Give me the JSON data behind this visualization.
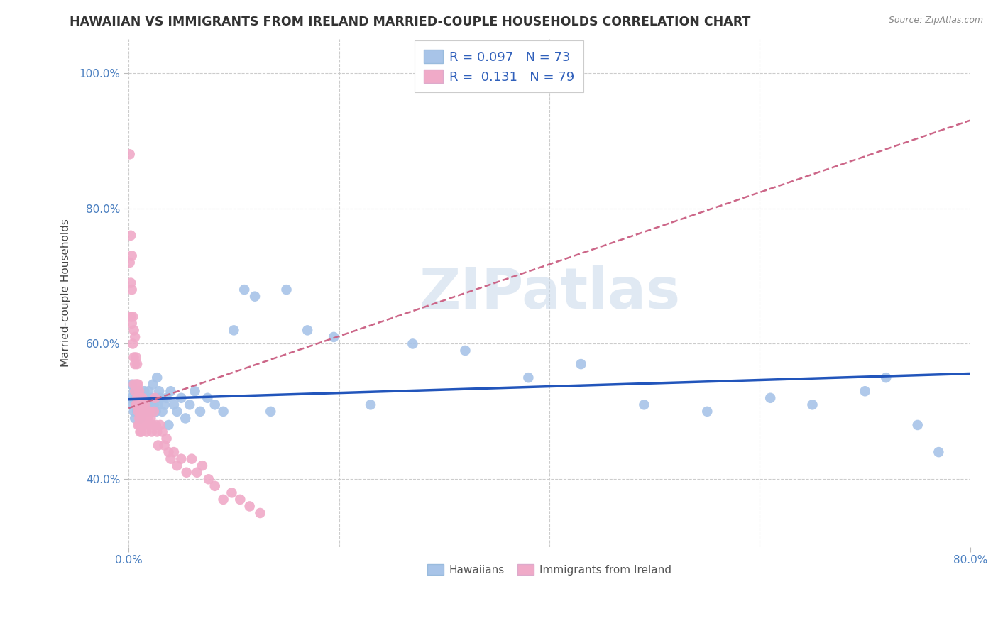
{
  "title": "HAWAIIAN VS IMMIGRANTS FROM IRELAND MARRIED-COUPLE HOUSEHOLDS CORRELATION CHART",
  "source": "Source: ZipAtlas.com",
  "ylabel": "Married-couple Households",
  "xlim": [
    0.0,
    0.8
  ],
  "ylim": [
    0.3,
    1.05
  ],
  "yticks": [
    0.4,
    0.6,
    0.8,
    1.0
  ],
  "ytick_labels": [
    "40.0%",
    "60.0%",
    "80.0%",
    "100.0%"
  ],
  "xtick_vals": [
    0.0,
    0.8
  ],
  "xtick_labels": [
    "0.0%",
    "80.0%"
  ],
  "hawaiian_R": 0.097,
  "hawaiian_N": 73,
  "ireland_R": 0.131,
  "ireland_N": 79,
  "hawaiian_color": "#a8c4e8",
  "ireland_color": "#f0aac8",
  "hawaiian_line_color": "#2255bb",
  "ireland_line_color": "#cc6688",
  "background_color": "#ffffff",
  "grid_color": "#cccccc",
  "watermark": "ZIPatlas",
  "watermark_color": "#c8d8ea",
  "hawaiian_x": [
    0.002,
    0.003,
    0.004,
    0.005,
    0.005,
    0.006,
    0.006,
    0.007,
    0.007,
    0.008,
    0.008,
    0.009,
    0.009,
    0.01,
    0.01,
    0.011,
    0.011,
    0.012,
    0.012,
    0.013,
    0.014,
    0.015,
    0.015,
    0.016,
    0.017,
    0.018,
    0.019,
    0.02,
    0.021,
    0.022,
    0.023,
    0.024,
    0.025,
    0.026,
    0.027,
    0.028,
    0.029,
    0.03,
    0.032,
    0.034,
    0.036,
    0.038,
    0.04,
    0.043,
    0.046,
    0.05,
    0.054,
    0.058,
    0.063,
    0.068,
    0.075,
    0.082,
    0.09,
    0.1,
    0.11,
    0.12,
    0.135,
    0.15,
    0.17,
    0.195,
    0.23,
    0.27,
    0.32,
    0.38,
    0.43,
    0.49,
    0.55,
    0.61,
    0.65,
    0.7,
    0.72,
    0.75,
    0.77
  ],
  "hawaiian_y": [
    0.52,
    0.54,
    0.51,
    0.53,
    0.5,
    0.52,
    0.49,
    0.51,
    0.53,
    0.5,
    0.52,
    0.51,
    0.53,
    0.5,
    0.52,
    0.51,
    0.49,
    0.52,
    0.5,
    0.51,
    0.52,
    0.5,
    0.53,
    0.51,
    0.52,
    0.5,
    0.53,
    0.51,
    0.52,
    0.5,
    0.54,
    0.51,
    0.52,
    0.5,
    0.55,
    0.51,
    0.53,
    0.52,
    0.5,
    0.51,
    0.52,
    0.48,
    0.53,
    0.51,
    0.5,
    0.52,
    0.49,
    0.51,
    0.53,
    0.5,
    0.52,
    0.51,
    0.5,
    0.62,
    0.68,
    0.67,
    0.5,
    0.68,
    0.62,
    0.61,
    0.51,
    0.6,
    0.59,
    0.55,
    0.57,
    0.51,
    0.5,
    0.52,
    0.51,
    0.53,
    0.55,
    0.48,
    0.44
  ],
  "ireland_x": [
    0.001,
    0.001,
    0.002,
    0.002,
    0.002,
    0.003,
    0.003,
    0.003,
    0.004,
    0.004,
    0.005,
    0.005,
    0.005,
    0.006,
    0.006,
    0.006,
    0.007,
    0.007,
    0.007,
    0.008,
    0.008,
    0.008,
    0.009,
    0.009,
    0.009,
    0.01,
    0.01,
    0.01,
    0.011,
    0.011,
    0.011,
    0.012,
    0.012,
    0.013,
    0.013,
    0.014,
    0.014,
    0.015,
    0.015,
    0.016,
    0.016,
    0.017,
    0.017,
    0.018,
    0.019,
    0.02,
    0.021,
    0.022,
    0.023,
    0.024,
    0.025,
    0.026,
    0.027,
    0.028,
    0.03,
    0.032,
    0.034,
    0.036,
    0.038,
    0.04,
    0.043,
    0.046,
    0.05,
    0.055,
    0.06,
    0.065,
    0.07,
    0.076,
    0.082,
    0.09,
    0.098,
    0.106,
    0.115,
    0.125,
    0.01,
    0.011,
    0.012,
    0.008,
    0.009
  ],
  "ireland_y": [
    0.88,
    0.72,
    0.76,
    0.69,
    0.64,
    0.73,
    0.68,
    0.63,
    0.64,
    0.6,
    0.62,
    0.58,
    0.54,
    0.61,
    0.57,
    0.53,
    0.58,
    0.54,
    0.51,
    0.57,
    0.54,
    0.51,
    0.54,
    0.52,
    0.48,
    0.53,
    0.51,
    0.48,
    0.52,
    0.5,
    0.47,
    0.51,
    0.49,
    0.52,
    0.5,
    0.51,
    0.49,
    0.5,
    0.48,
    0.51,
    0.49,
    0.5,
    0.47,
    0.49,
    0.48,
    0.5,
    0.49,
    0.47,
    0.48,
    0.5,
    0.52,
    0.48,
    0.47,
    0.45,
    0.48,
    0.47,
    0.45,
    0.46,
    0.44,
    0.43,
    0.44,
    0.42,
    0.43,
    0.41,
    0.43,
    0.41,
    0.42,
    0.4,
    0.39,
    0.37,
    0.38,
    0.37,
    0.36,
    0.35,
    0.49,
    0.48,
    0.47,
    0.52,
    0.5
  ],
  "blue_line_x": [
    0.0,
    0.8
  ],
  "blue_line_y": [
    0.518,
    0.556
  ],
  "pink_line_x": [
    0.0,
    0.8
  ],
  "pink_line_y": [
    0.505,
    0.93
  ]
}
